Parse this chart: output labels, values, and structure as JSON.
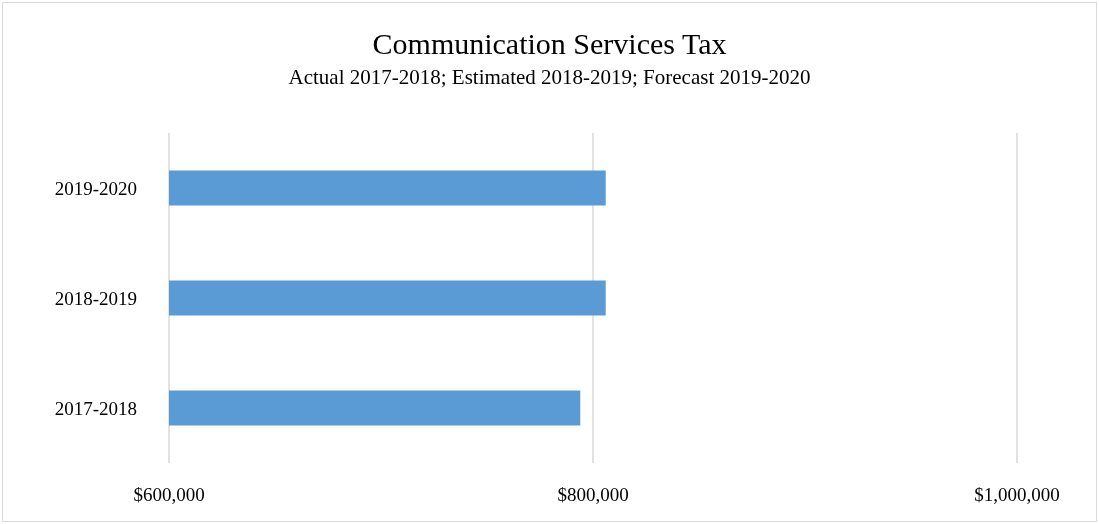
{
  "chart_data": {
    "type": "bar",
    "orientation": "horizontal",
    "title": "Communication Services Tax",
    "subtitle": "Actual 2017-2018; Estimated 2018-2019; Forecast 2019-2020",
    "categories": [
      "2019-2020",
      "2018-2019",
      "2017-2018"
    ],
    "values": [
      806000,
      806000,
      794000
    ],
    "color": "#5b9bd5",
    "xlim": [
      600000,
      1000000
    ],
    "xticks": [
      {
        "value": 600000,
        "label": "$600,000"
      },
      {
        "value": 800000,
        "label": "$800,000"
      },
      {
        "value": 1000000,
        "label": "$1,000,000"
      }
    ],
    "grid": "x"
  }
}
